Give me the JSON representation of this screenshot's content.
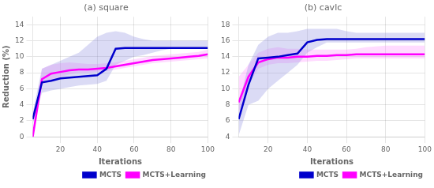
{
  "chart_data": [
    {
      "type": "line",
      "title": "(a) square",
      "xlabel": "Iterations",
      "ylabel": "Reduction (%)",
      "x": [
        5,
        10,
        15,
        20,
        25,
        30,
        35,
        40,
        45,
        50,
        55,
        60,
        65,
        70,
        75,
        80,
        85,
        90,
        95,
        100
      ],
      "series": [
        {
          "name": "MCTS",
          "color": "#0000CC",
          "values": [
            2.2,
            6.8,
            7.0,
            7.3,
            7.4,
            7.5,
            7.6,
            7.7,
            8.5,
            11.0,
            11.1,
            11.1,
            11.1,
            11.1,
            11.1,
            11.1,
            11.1,
            11.1,
            11.1,
            11.1
          ],
          "band": {
            "color": "#8888DD",
            "low": [
              1.5,
              5.5,
              5.8,
              6.0,
              6.2,
              6.4,
              6.5,
              6.6,
              7.0,
              9.0,
              9.5,
              10.0,
              10.2,
              10.5,
              10.8,
              11.0,
              11.0,
              11.0,
              11.0,
              11.0
            ],
            "high": [
              3.0,
              8.5,
              9.0,
              9.5,
              10.0,
              10.5,
              11.5,
              12.5,
              13.0,
              13.2,
              13.0,
              12.5,
              12.2,
              12.0,
              12.0,
              12.0,
              12.0,
              12.0,
              12.0,
              12.0
            ]
          }
        },
        {
          "name": "MCTS+Learning",
          "color": "#FF00FF",
          "values": [
            0.0,
            7.2,
            7.9,
            8.1,
            8.3,
            8.4,
            8.4,
            8.5,
            8.6,
            8.8,
            9.0,
            9.2,
            9.4,
            9.6,
            9.7,
            9.8,
            9.9,
            10.0,
            10.1,
            10.3
          ],
          "band": {
            "color": "#FF88FF",
            "low": [
              0.0,
              6.5,
              7.2,
              7.5,
              7.8,
              8.0,
              8.0,
              8.1,
              8.2,
              8.4,
              8.6,
              8.8,
              9.0,
              9.2,
              9.3,
              9.4,
              9.5,
              9.6,
              9.7,
              9.8
            ],
            "high": [
              0.0,
              8.5,
              9.0,
              9.2,
              9.3,
              9.2,
              9.1,
              9.1,
              9.2,
              9.3,
              9.5,
              9.7,
              9.9,
              10.1,
              10.2,
              10.3,
              10.4,
              10.5,
              10.6,
              10.9
            ]
          }
        }
      ],
      "xlim": [
        5,
        100
      ],
      "xticks": [
        20,
        40,
        60,
        80,
        100
      ],
      "ylim": [
        0,
        15
      ],
      "yticks": [
        0,
        2,
        4,
        6,
        8,
        10,
        12,
        14
      ],
      "grid": true,
      "legend": "lower right"
    },
    {
      "type": "line",
      "title": "(b) cavlc",
      "xlabel": "Iterations",
      "x": [
        5,
        10,
        15,
        20,
        25,
        30,
        35,
        40,
        45,
        50,
        55,
        60,
        65,
        70,
        75,
        80,
        85,
        90,
        95,
        100
      ],
      "series": [
        {
          "name": "MCTS",
          "color": "#0000CC",
          "values": [
            6.2,
            10.5,
            13.8,
            13.9,
            14.0,
            14.2,
            14.4,
            15.8,
            16.1,
            16.2,
            16.2,
            16.2,
            16.2,
            16.2,
            16.2,
            16.2,
            16.2,
            16.2,
            16.2,
            16.2
          ],
          "band": {
            "color": "#8888DD",
            "low": [
              4.2,
              8.0,
              8.5,
              10.0,
              11.0,
              12.0,
              13.0,
              14.5,
              15.2,
              15.8,
              15.8,
              15.8,
              15.8,
              15.8,
              15.8,
              15.8,
              15.8,
              15.8,
              15.8,
              15.8
            ],
            "high": [
              8.0,
              13.0,
              15.5,
              16.5,
              17.0,
              17.0,
              17.2,
              17.5,
              17.5,
              17.5,
              17.5,
              17.2,
              17.0,
              17.0,
              17.0,
              17.0,
              17.0,
              17.0,
              17.0,
              17.0
            ]
          }
        },
        {
          "name": "MCTS+Learning",
          "color": "#FF00FF",
          "values": [
            8.3,
            11.5,
            13.3,
            13.7,
            13.9,
            13.9,
            14.0,
            14.0,
            14.1,
            14.1,
            14.2,
            14.2,
            14.3,
            14.3,
            14.3,
            14.3,
            14.3,
            14.3,
            14.3,
            14.3
          ],
          "band": {
            "color": "#FF88FF",
            "low": [
              7.0,
              10.5,
              12.5,
              13.0,
              13.2,
              13.2,
              13.3,
              13.4,
              13.5,
              13.5,
              13.6,
              13.7,
              13.8,
              13.8,
              13.8,
              13.8,
              13.8,
              13.8,
              13.8,
              13.8
            ],
            "high": [
              11.5,
              13.0,
              14.5,
              15.0,
              15.2,
              15.0,
              15.0,
              14.9,
              14.9,
              14.9,
              14.9,
              14.9,
              15.0,
              15.2,
              15.3,
              15.4,
              15.4,
              15.4,
              15.4,
              15.4
            ]
          }
        }
      ],
      "xlim": [
        5,
        100
      ],
      "xticks": [
        20,
        40,
        60,
        80,
        100
      ],
      "ylim": [
        4,
        19
      ],
      "yticks": [
        4,
        6,
        8,
        10,
        12,
        14,
        16,
        18
      ],
      "grid": true,
      "legend": "lower right"
    }
  ]
}
